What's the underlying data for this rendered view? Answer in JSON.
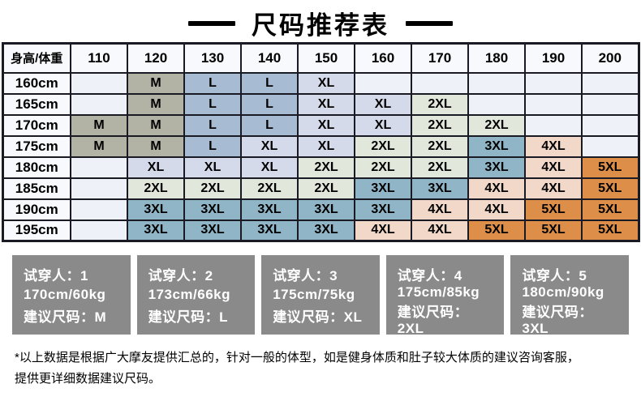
{
  "title": "尺码推荐表",
  "table": {
    "corner_header": "身高/体重",
    "weight_headers": [
      "110",
      "120",
      "130",
      "140",
      "150",
      "160",
      "170",
      "180",
      "190",
      "200"
    ],
    "rows": [
      {
        "label": "160cm",
        "cells": [
          "",
          "M",
          "L",
          "L",
          "XL",
          "",
          "",
          "",
          "",
          ""
        ]
      },
      {
        "label": "165cm",
        "cells": [
          "",
          "M",
          "L",
          "L",
          "XL",
          "XL",
          "2XL",
          "",
          "",
          ""
        ]
      },
      {
        "label": "170cm",
        "cells": [
          "M",
          "M",
          "L",
          "L",
          "XL",
          "XL",
          "2XL",
          "2XL",
          "",
          ""
        ]
      },
      {
        "label": "175cm",
        "cells": [
          "M",
          "M",
          "L",
          "XL",
          "XL",
          "2XL",
          "2XL",
          "3XL",
          "4XL",
          ""
        ]
      },
      {
        "label": "180cm",
        "cells": [
          "",
          "XL",
          "XL",
          "XL",
          "2XL",
          "2XL",
          "2XL",
          "3XL",
          "4XL",
          "5XL"
        ]
      },
      {
        "label": "185cm",
        "cells": [
          "",
          "2XL",
          "2XL",
          "2XL",
          "2XL",
          "3XL",
          "3XL",
          "4XL",
          "4XL",
          "5XL"
        ]
      },
      {
        "label": "190cm",
        "cells": [
          "",
          "3XL",
          "3XL",
          "3XL",
          "3XL",
          "3XL",
          "4XL",
          "4XL",
          "5XL",
          "5XL"
        ]
      },
      {
        "label": "195cm",
        "cells": [
          "",
          "3XL",
          "3XL",
          "3XL",
          "3XL",
          "4XL",
          "4XL",
          "5XL",
          "5XL",
          "5XL"
        ]
      }
    ]
  },
  "size_colors": {
    "M": "#b3b3a5",
    "L": "#a7bcd3",
    "XL": "#d5daeb",
    "2XL": "#e1e7db",
    "3XL": "#8fb5c7",
    "4XL": "#f1d8c8",
    "5XL": "#dd8f49",
    "empty": "#eff1f8"
  },
  "theme": {
    "border_color": "#1a1a24",
    "header_bg": "#f8f9fd",
    "fitter_box_bg": "#8a8a8a",
    "fitter_text_color": "#ffffff"
  },
  "fitters": [
    {
      "person": "试穿人：1",
      "stats": "170cm/60kg",
      "suggestion": "建议尺码：M"
    },
    {
      "person": "试穿人：2",
      "stats": "173cm/66kg",
      "suggestion": "建议尺码：L"
    },
    {
      "person": "试穿人：3",
      "stats": "175cm/75kg",
      "suggestion": "建议尺码：XL"
    },
    {
      "person": "试穿人：4",
      "stats": "175cm/85kg",
      "suggestion": "建议尺码：2XL"
    },
    {
      "person": "试穿人：5",
      "stats": "180cm/90kg",
      "suggestion": "建议尺码：3XL"
    }
  ],
  "footnote": {
    "line1": "*以上数据是根据广大摩友提供汇总的，针对一般的体型，如是健身体质和肚子较大体质的建议咨询客服，",
    "line2": "提供更详细数据建议尺码。"
  }
}
